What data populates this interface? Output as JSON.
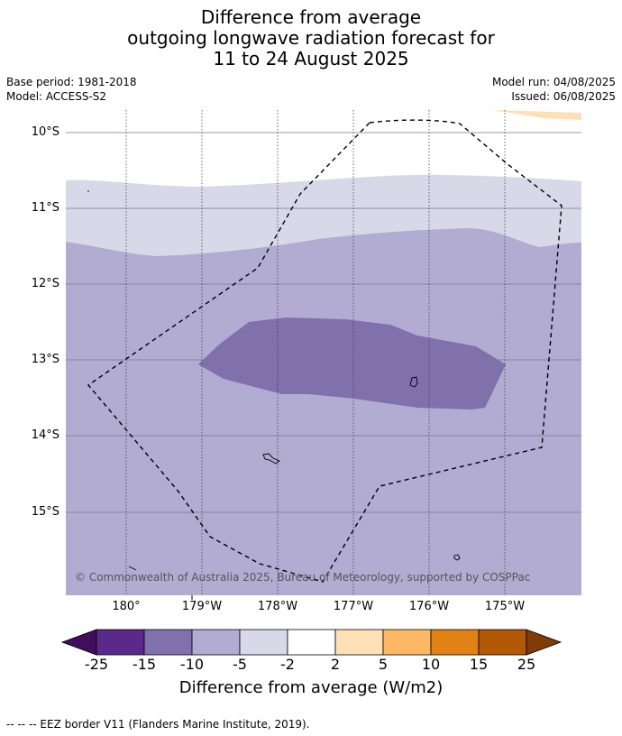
{
  "title": {
    "line1": "Difference from average",
    "line2": "outgoing longwave radiation forecast for",
    "line3": "11 to 24 August 2025"
  },
  "meta": {
    "base_period": "Base period: 1981-2018",
    "model": "Model: ACCESS-S2",
    "model_run": "Model run: 04/08/2025",
    "issued": "Issued: 06/08/2025"
  },
  "latitude_labels": [
    "10°S",
    "11°S",
    "12°S",
    "13°S",
    "14°S",
    "15°S"
  ],
  "longitude_labels": [
    "180°",
    "179°W",
    "178°W",
    "177°W",
    "176°W",
    "175°W"
  ],
  "copyright": "© Commonwealth of Australia 2025, Bureau of Meteorology, supported by COSPPac",
  "colorbar": {
    "ticks": [
      "-25",
      "-15",
      "-10",
      "-5",
      "-2",
      "2",
      "5",
      "10",
      "15",
      "25"
    ],
    "label": "Difference from average (W/m2)",
    "colors": [
      "#3f0f5e",
      "#5a2a8a",
      "#8070ab",
      "#b2abd2",
      "#d8d8e8",
      "#ffffff",
      "#fee0b6",
      "#fdb863",
      "#e08214",
      "#b35806",
      "#7f3b08"
    ]
  },
  "legend_note": "--  --  -- EEZ border V11 (Flanders Marine Institute, 2019)."
}
